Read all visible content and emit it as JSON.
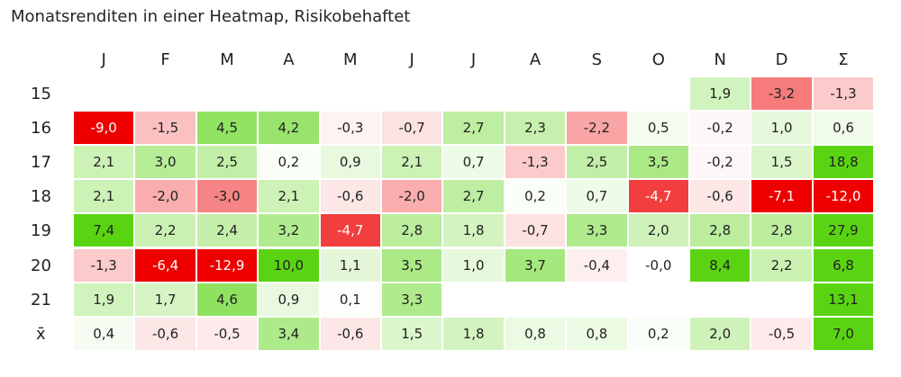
{
  "chart_data": {
    "type": "heatmap",
    "title": "Monatsrenditen in einer Heatmap, Risikobehaftet",
    "columns": [
      "J",
      "F",
      "M",
      "A",
      "M",
      "J",
      "J",
      "A",
      "S",
      "O",
      "N",
      "D",
      "Σ"
    ],
    "rows": [
      "15",
      "16",
      "17",
      "18",
      "19",
      "20",
      "21",
      "x̄"
    ],
    "values": [
      [
        null,
        null,
        null,
        null,
        null,
        null,
        null,
        null,
        null,
        null,
        "1,9",
        "-3,2",
        "-1,3"
      ],
      [
        "-9,0",
        "-1,5",
        "4,5",
        "4,2",
        "-0,3",
        "-0,7",
        "2,7",
        "2,3",
        "-2,2",
        "0,5",
        "-0,2",
        "1,0",
        "0,6"
      ],
      [
        "2,1",
        "3,0",
        "2,5",
        "0,2",
        "0,9",
        "2,1",
        "0,7",
        "-1,3",
        "2,5",
        "3,5",
        "-0,2",
        "1,5",
        "18,8"
      ],
      [
        "2,1",
        "-2,0",
        "-3,0",
        "2,1",
        "-0,6",
        "-2,0",
        "2,7",
        "0,2",
        "0,7",
        "-4,7",
        "-0,6",
        "-7,1",
        "-12,0"
      ],
      [
        "7,4",
        "2,2",
        "2,4",
        "3,2",
        "-4,7",
        "2,8",
        "1,8",
        "-0,7",
        "3,3",
        "2,0",
        "2,8",
        "2,8",
        "27,9"
      ],
      [
        "-1,3",
        "-6,4",
        "-12,9",
        "10,0",
        "1,1",
        "3,5",
        "1,0",
        "3,7",
        "-0,4",
        "-0,0",
        "8,4",
        "2,2",
        "6,8"
      ],
      [
        "1,9",
        "1,7",
        "4,6",
        "0,9",
        "0,1",
        "3,3",
        null,
        null,
        null,
        null,
        null,
        null,
        "13,1"
      ],
      [
        "0,4",
        "-0,6",
        "-0,5",
        "3,4",
        "-0,6",
        "1,5",
        "1,8",
        "0,8",
        "0,8",
        "0,2",
        "2,0",
        "-0,5",
        "7,0"
      ]
    ],
    "color_scale": {
      "negative": "#ee0000",
      "neutral": "#ffffff",
      "positive": "#5ad412"
    }
  }
}
